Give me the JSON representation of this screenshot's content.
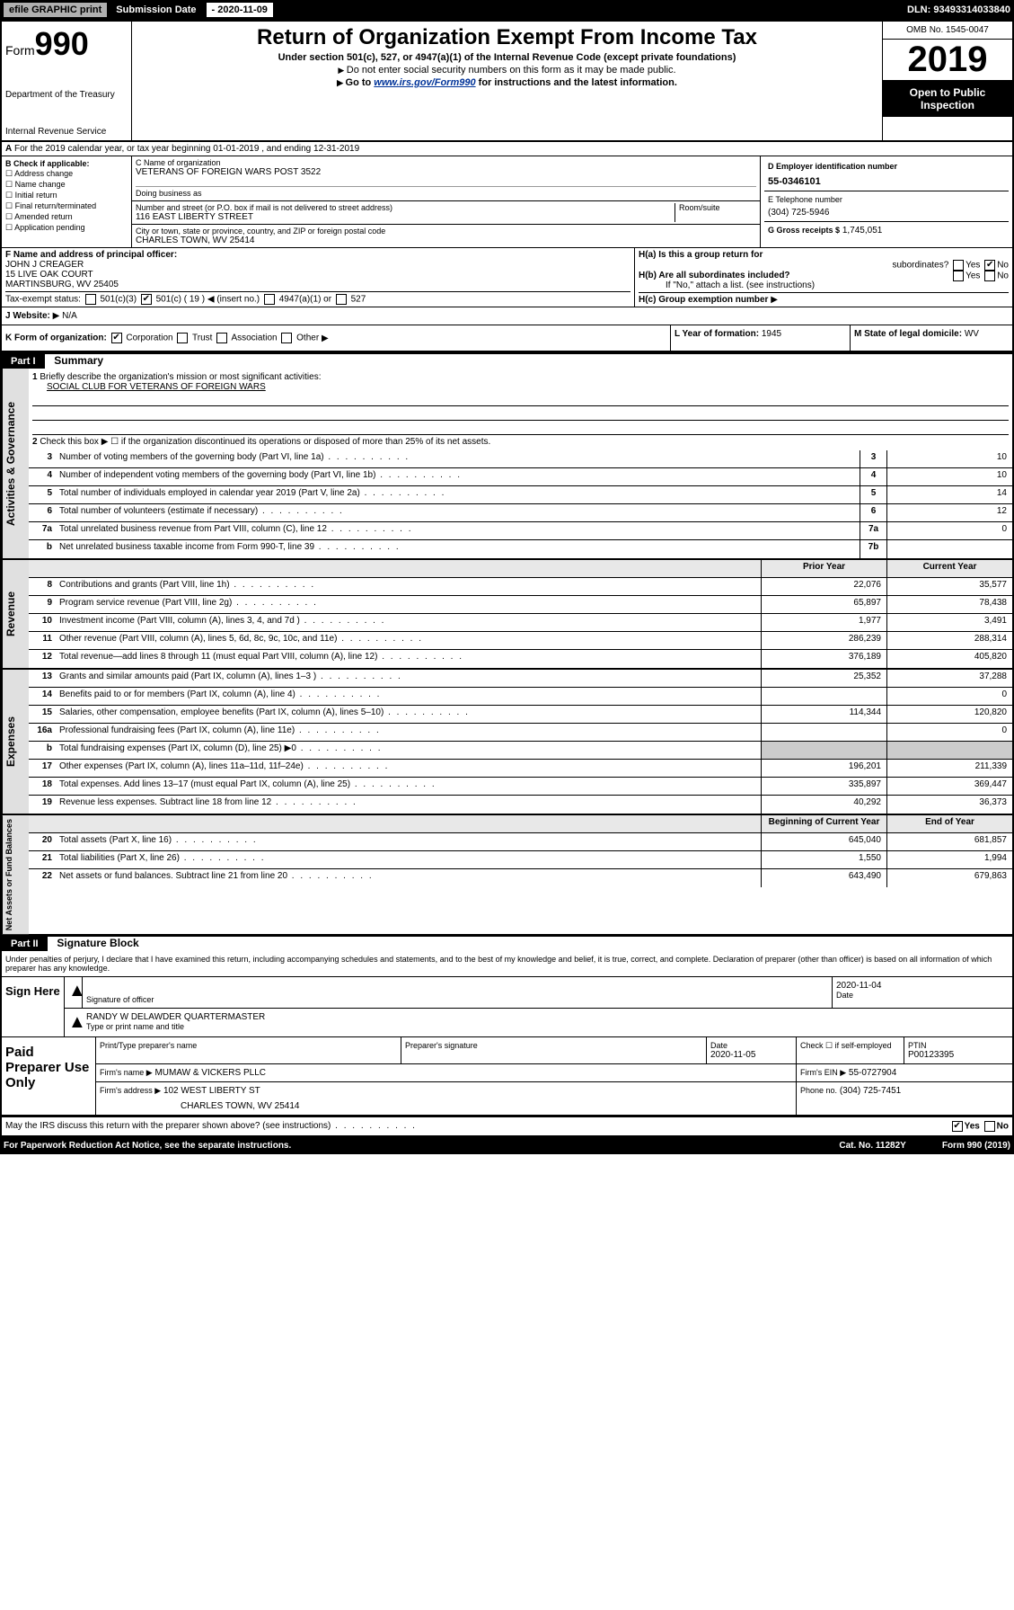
{
  "topbar": {
    "efile": "efile GRAPHIC print",
    "sub_label": "Submission Date",
    "sub_date": "- 2020-11-09",
    "dln": "DLN: 93493314033840"
  },
  "header": {
    "form": "Form",
    "form_num": "990",
    "dept": "Department of the Treasury",
    "irs": "Internal Revenue Service",
    "title": "Return of Organization Exempt From Income Tax",
    "sub1": "Under section 501(c), 527, or 4947(a)(1) of the Internal Revenue Code (except private foundations)",
    "sub2": "Do not enter social security numbers on this form as it may be made public.",
    "sub3_pre": "Go to ",
    "sub3_link": "www.irs.gov/Form990",
    "sub3_post": " for instructions and the latest information.",
    "omb": "OMB No. 1545-0047",
    "year": "2019",
    "open": "Open to Public Inspection"
  },
  "line_a": "For the 2019 calendar year, or tax year beginning 01-01-2019    , and ending 12-31-2019",
  "col_b": {
    "hdr": "B Check if applicable:",
    "items": [
      "Address change",
      "Name change",
      "Initial return",
      "Final return/terminated",
      "Amended return",
      "Application pending"
    ]
  },
  "col_c": {
    "name_label": "C Name of organization",
    "name": "VETERANS OF FOREIGN WARS POST 3522",
    "dba_label": "Doing business as",
    "addr_label": "Number and street (or P.O. box if mail is not delivered to street address)",
    "addr": "116 EAST LIBERTY STREET",
    "room_label": "Room/suite",
    "city_label": "City or town, state or province, country, and ZIP or foreign postal code",
    "city": "CHARLES TOWN, WV  25414"
  },
  "col_d": {
    "ein_label": "D Employer identification number",
    "ein": "55-0346101",
    "tel_label": "E Telephone number",
    "tel": "(304) 725-5946",
    "gross_label": "G Gross receipts $",
    "gross": "1,745,051"
  },
  "row_f": {
    "label": "F  Name and address of principal officer:",
    "name": "JOHN J CREAGER",
    "addr1": "15 LIVE OAK COURT",
    "addr2": "MARTINSBURG, WV  25405"
  },
  "row_h": {
    "ha_label": "H(a)  Is this a group return for",
    "ha_sub": "subordinates?",
    "hb_label": "H(b)  Are all subordinates included?",
    "hb_note": "If \"No,\" attach a list. (see instructions)",
    "hc_label": "H(c)  Group exemption number",
    "yes": "Yes",
    "no": "No"
  },
  "tax_exempt": {
    "label": "Tax-exempt status:",
    "opt1": "501(c)(3)",
    "opt2": "501(c) ( 19 )",
    "opt2_note": "(insert no.)",
    "opt3": "4947(a)(1) or",
    "opt4": "527"
  },
  "row_j": {
    "label": "J  Website:",
    "val": "N/A"
  },
  "row_k": {
    "label": "K Form of organization:",
    "opts": [
      "Corporation",
      "Trust",
      "Association",
      "Other"
    ],
    "l_label": "L Year of formation:",
    "l_val": "1945",
    "m_label": "M State of legal domicile:",
    "m_val": "WV"
  },
  "part1": {
    "hdr": "Part I",
    "title": "Summary",
    "line1_label": "Briefly describe the organization's mission or most significant activities:",
    "line1_val": "SOCIAL CLUB FOR VETERANS OF FOREIGN WARS",
    "line2": "Check this box ▶ ☐ if the organization discontinued its operations or disposed of more than 25% of its net assets.",
    "sides": {
      "gov": "Activities & Governance",
      "rev": "Revenue",
      "exp": "Expenses",
      "net": "Net Assets or Fund Balances"
    },
    "rows_gov": [
      {
        "n": "3",
        "label": "Number of voting members of the governing body (Part VI, line 1a)",
        "box": "3",
        "val": "10"
      },
      {
        "n": "4",
        "label": "Number of independent voting members of the governing body (Part VI, line 1b)",
        "box": "4",
        "val": "10"
      },
      {
        "n": "5",
        "label": "Total number of individuals employed in calendar year 2019 (Part V, line 2a)",
        "box": "5",
        "val": "14"
      },
      {
        "n": "6",
        "label": "Total number of volunteers (estimate if necessary)",
        "box": "6",
        "val": "12"
      },
      {
        "n": "7a",
        "label": "Total unrelated business revenue from Part VIII, column (C), line 12",
        "box": "7a",
        "val": "0"
      },
      {
        "n": "b",
        "label": "Net unrelated business taxable income from Form 990-T, line 39",
        "box": "7b",
        "val": ""
      }
    ],
    "col_hdrs": {
      "prior": "Prior Year",
      "current": "Current Year",
      "beg": "Beginning of Current Year",
      "end": "End of Year"
    },
    "rows_rev": [
      {
        "n": "8",
        "label": "Contributions and grants (Part VIII, line 1h)",
        "p": "22,076",
        "c": "35,577"
      },
      {
        "n": "9",
        "label": "Program service revenue (Part VIII, line 2g)",
        "p": "65,897",
        "c": "78,438"
      },
      {
        "n": "10",
        "label": "Investment income (Part VIII, column (A), lines 3, 4, and 7d )",
        "p": "1,977",
        "c": "3,491"
      },
      {
        "n": "11",
        "label": "Other revenue (Part VIII, column (A), lines 5, 6d, 8c, 9c, 10c, and 11e)",
        "p": "286,239",
        "c": "288,314"
      },
      {
        "n": "12",
        "label": "Total revenue—add lines 8 through 11 (must equal Part VIII, column (A), line 12)",
        "p": "376,189",
        "c": "405,820"
      }
    ],
    "rows_exp": [
      {
        "n": "13",
        "label": "Grants and similar amounts paid (Part IX, column (A), lines 1–3 )",
        "p": "25,352",
        "c": "37,288"
      },
      {
        "n": "14",
        "label": "Benefits paid to or for members (Part IX, column (A), line 4)",
        "p": "",
        "c": "0"
      },
      {
        "n": "15",
        "label": "Salaries, other compensation, employee benefits (Part IX, column (A), lines 5–10)",
        "p": "114,344",
        "c": "120,820"
      },
      {
        "n": "16a",
        "label": "Professional fundraising fees (Part IX, column (A), line 11e)",
        "p": "",
        "c": "0"
      },
      {
        "n": "b",
        "label": "Total fundraising expenses (Part IX, column (D), line 25) ▶0",
        "p": "gray",
        "c": "gray"
      },
      {
        "n": "17",
        "label": "Other expenses (Part IX, column (A), lines 11a–11d, 11f–24e)",
        "p": "196,201",
        "c": "211,339"
      },
      {
        "n": "18",
        "label": "Total expenses. Add lines 13–17 (must equal Part IX, column (A), line 25)",
        "p": "335,897",
        "c": "369,447"
      },
      {
        "n": "19",
        "label": "Revenue less expenses. Subtract line 18 from line 12",
        "p": "40,292",
        "c": "36,373"
      }
    ],
    "rows_net": [
      {
        "n": "20",
        "label": "Total assets (Part X, line 16)",
        "p": "645,040",
        "c": "681,857"
      },
      {
        "n": "21",
        "label": "Total liabilities (Part X, line 26)",
        "p": "1,550",
        "c": "1,994"
      },
      {
        "n": "22",
        "label": "Net assets or fund balances. Subtract line 21 from line 20",
        "p": "643,490",
        "c": "679,863"
      }
    ]
  },
  "part2": {
    "hdr": "Part II",
    "title": "Signature Block",
    "text": "Under penalties of perjury, I declare that I have examined this return, including accompanying schedules and statements, and to the best of my knowledge and belief, it is true, correct, and complete. Declaration of preparer (other than officer) is based on all information of which preparer has any knowledge.",
    "sign_here": "Sign Here",
    "sig_officer": "Signature of officer",
    "sig_date": "Date",
    "sig_date_val": "2020-11-04",
    "name_title": "RANDY W DELAWDER QUARTERMASTER",
    "name_title_label": "Type or print name and title",
    "paid": "Paid Preparer Use Only",
    "prep_name_label": "Print/Type preparer's name",
    "prep_sig_label": "Preparer's signature",
    "prep_date_label": "Date",
    "prep_date": "2020-11-05",
    "check_label": "Check ☐ if self-employed",
    "ptin_label": "PTIN",
    "ptin": "P00123395",
    "firm_name_label": "Firm's name    ▶",
    "firm_name": "MUMAW & VICKERS PLLC",
    "firm_ein_label": "Firm's EIN ▶",
    "firm_ein": "55-0727904",
    "firm_addr_label": "Firm's address ▶",
    "firm_addr1": "102 WEST LIBERTY ST",
    "firm_addr2": "CHARLES TOWN, WV  25414",
    "phone_label": "Phone no.",
    "phone": "(304) 725-7451"
  },
  "bottom": {
    "discuss": "May the IRS discuss this return with the preparer shown above? (see instructions)",
    "yes": "Yes",
    "no": "No",
    "paperwork": "For Paperwork Reduction Act Notice, see the separate instructions.",
    "cat": "Cat. No. 11282Y",
    "form": "Form 990 (2019)"
  }
}
